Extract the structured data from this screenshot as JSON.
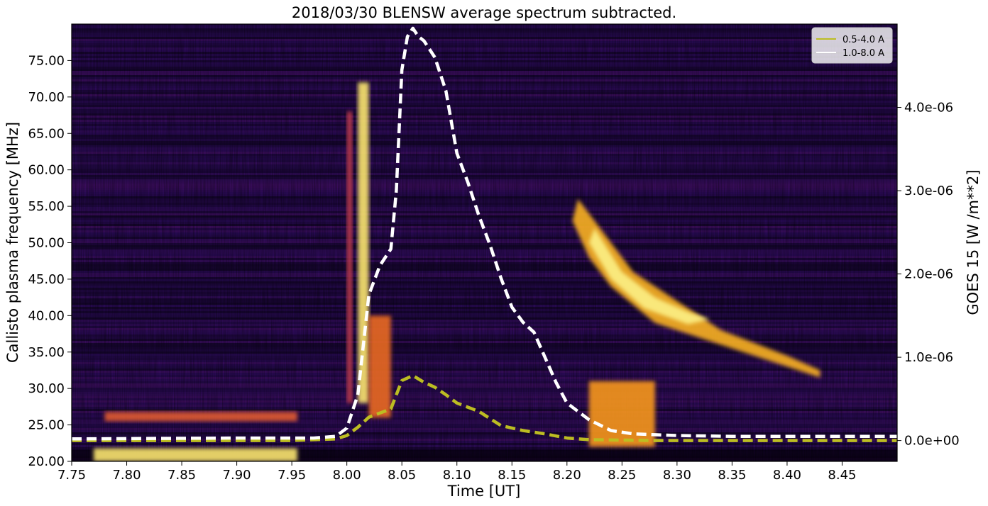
{
  "chart_data": {
    "type": "heatmap",
    "title": "2018/03/30 BLENSW average spectrum subtracted.",
    "xlabel": "Time [UT]",
    "ylabel": "Callisto plasma frequency [MHz]",
    "y2label": "GOES 15  [W /m**2]",
    "xlim": [
      7.75,
      8.5
    ],
    "ylim": [
      20.0,
      80.0
    ],
    "y2lim": [
      -2.5e-07,
      5e-06
    ],
    "x_ticks": [
      "7.75",
      "7.80",
      "7.85",
      "7.90",
      "7.95",
      "8.00",
      "8.05",
      "8.10",
      "8.15",
      "8.20",
      "8.25",
      "8.30",
      "8.35",
      "8.40",
      "8.45"
    ],
    "y_ticks": [
      "20.00",
      "25.00",
      "30.00",
      "35.00",
      "40.00",
      "45.00",
      "50.00",
      "55.00",
      "60.00",
      "65.00",
      "70.00",
      "75.00"
    ],
    "y2_ticks": [
      "0.0e+00",
      "1.0e-06",
      "2.0e-06",
      "3.0e-06",
      "4.0e-06"
    ],
    "colormap": "inferno",
    "legend_position": "top-right",
    "series": [
      {
        "name": "0.5-4.0 A",
        "color": "#bcbd22",
        "style": "dashed",
        "x": [
          7.75,
          7.95,
          7.99,
          8.0,
          8.01,
          8.02,
          8.03,
          8.04,
          8.05,
          8.06,
          8.07,
          8.08,
          8.09,
          8.1,
          8.12,
          8.14,
          8.16,
          8.18,
          8.2,
          8.22,
          8.25,
          8.28,
          8.3,
          8.35,
          8.4,
          8.45,
          8.5
        ],
        "values": [
          0.0,
          0.0,
          2e-08,
          6e-08,
          1.6e-07,
          2.8e-07,
          3.3e-07,
          3.8e-07,
          7.2e-07,
          7.8e-07,
          7e-07,
          6.4e-07,
          5.5e-07,
          4.5e-07,
          3.5e-07,
          1.8e-07,
          1.2e-07,
          8e-08,
          3e-08,
          1e-08,
          5e-09,
          0.0,
          0.0,
          0.0,
          0.0,
          0.0,
          0.0
        ]
      },
      {
        "name": "1.0-8.0 A",
        "color": "#ffffff",
        "style": "dashed",
        "x": [
          7.75,
          7.9,
          7.97,
          7.99,
          8.0,
          8.01,
          8.02,
          8.03,
          8.04,
          8.045,
          8.05,
          8.055,
          8.06,
          8.065,
          8.07,
          8.075,
          8.08,
          8.09,
          8.1,
          8.11,
          8.12,
          8.13,
          8.14,
          8.15,
          8.16,
          8.17,
          8.18,
          8.19,
          8.2,
          8.21,
          8.22,
          8.24,
          8.26,
          8.28,
          8.3,
          8.35,
          8.4,
          8.45,
          8.5
        ],
        "values": [
          2e-08,
          3e-08,
          3e-08,
          5e-08,
          1.5e-07,
          5.5e-07,
          1.75e-06,
          2.1e-06,
          2.3e-06,
          3e-06,
          4.45e-06,
          4.85e-06,
          4.95e-06,
          4.85e-06,
          4.8e-06,
          4.7e-06,
          4.6e-06,
          4.2e-06,
          3.45e-06,
          3.1e-06,
          2.7e-06,
          2.35e-06,
          1.95e-06,
          1.6e-06,
          1.42e-06,
          1.3e-06,
          1e-06,
          7e-07,
          4.5e-07,
          3.5e-07,
          2.5e-07,
          1.2e-07,
          8e-08,
          7e-08,
          6e-08,
          5e-08,
          5e-08,
          5e-08,
          5e-08
        ]
      }
    ],
    "heatmap_features": [
      {
        "t0": 7.77,
        "t1": 7.955,
        "f0": 20.0,
        "f1": 21.8,
        "intensity": 0.95
      },
      {
        "t0": 7.78,
        "t1": 7.955,
        "f0": 25.5,
        "f1": 26.8,
        "intensity": 0.65
      },
      {
        "t0": 8.0,
        "t1": 8.005,
        "f0": 28.0,
        "f1": 68.0,
        "intensity": 0.55
      },
      {
        "t0": 8.01,
        "t1": 8.02,
        "f0": 28.0,
        "f1": 72.0,
        "intensity": 0.95
      },
      {
        "t0": 8.02,
        "t1": 8.04,
        "f0": 26.0,
        "f1": 40.0,
        "intensity": 0.7
      },
      {
        "t0": 8.22,
        "t1": 8.28,
        "f0": 22.0,
        "f1": 31.0,
        "intensity": 0.8
      },
      {
        "t0": 8.21,
        "t1": 8.43,
        "f0": 33.0,
        "f1": 56.0,
        "intensity": 0.85
      }
    ]
  }
}
